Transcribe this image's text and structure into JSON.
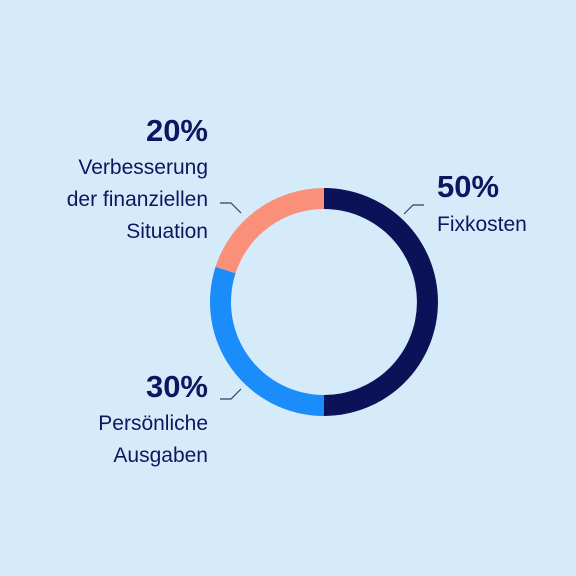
{
  "chart_data": {
    "type": "pie",
    "donut": true,
    "start_angle_deg": 0,
    "direction": "clockwise",
    "slices": [
      {
        "value": 50,
        "percent_label": "50%",
        "label_lines": [
          "Fixkosten"
        ],
        "color": "#0b1258"
      },
      {
        "value": 30,
        "percent_label": "30%",
        "label_lines": [
          "Persönliche",
          "Ausgaben"
        ],
        "color": "#1a8dfa"
      },
      {
        "value": 20,
        "percent_label": "20%",
        "label_lines": [
          "Verbesserung",
          "der finanziellen",
          "Situation"
        ],
        "color": "#fa8f7a"
      }
    ],
    "legend": "none",
    "grid": false
  },
  "colors": {
    "background": "#d6ebfa",
    "text": "#0f1660",
    "leader_line": "#2f3f6a"
  }
}
